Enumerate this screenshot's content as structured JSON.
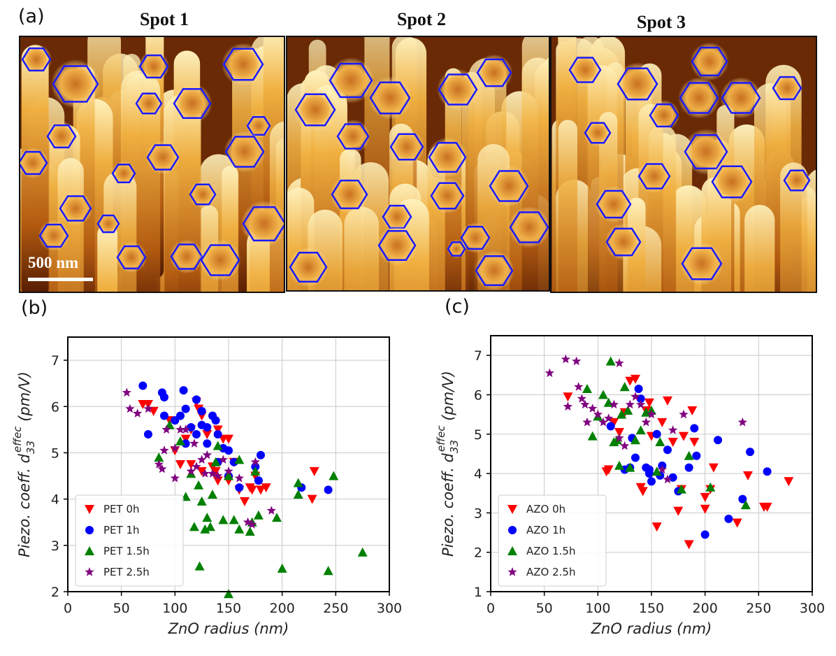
{
  "figure": {
    "panel_label": "(a)",
    "spots": [
      "Spot 1",
      "Spot 2",
      "Spot 3"
    ],
    "scale_bar": "500 nm"
  },
  "chart_data": [
    {
      "type": "scatter",
      "panel_label": "(b)",
      "xlabel": "ZnO radius (nm)",
      "ylabel": {
        "prefix": "Piezo. coeff. d",
        "sub": "33",
        "sup": "effec",
        "suffix": " (pm/V)"
      },
      "xlim": [
        0,
        300
      ],
      "ylim": [
        2,
        7.5
      ],
      "xticks": [
        0,
        50,
        100,
        150,
        200,
        250,
        300
      ],
      "yticks": [
        2,
        3,
        4,
        5,
        6,
        7
      ],
      "grid": true,
      "legend": "lower left",
      "series": [
        {
          "name": "PET 0h",
          "color": "#ff0000",
          "marker": "v",
          "x": [
            70,
            75,
            80,
            100,
            105,
            110,
            115,
            120,
            122,
            125,
            130,
            135,
            138,
            140,
            145,
            150,
            155,
            160,
            165,
            170,
            172,
            175,
            180,
            185,
            230,
            228,
            115,
            125,
            140,
            150,
            95
          ],
          "values": [
            6.05,
            6.05,
            5.9,
            5.05,
            4.75,
            5.3,
            5.5,
            6.1,
            5.95,
            5.8,
            5.4,
            4.7,
            4.6,
            5.5,
            5.3,
            5.3,
            4.8,
            4.2,
            3.95,
            4.25,
            4.2,
            4.5,
            4.2,
            4.25,
            4.6,
            4.0,
            4.75,
            4.6,
            4.4,
            4.4,
            5.7
          ]
        },
        {
          "name": "PET 1h",
          "color": "#0000ff",
          "marker": "o",
          "x": [
            70,
            75,
            88,
            90,
            90,
            100,
            105,
            108,
            110,
            115,
            120,
            120,
            125,
            125,
            130,
            130,
            135,
            138,
            140,
            145,
            150,
            150,
            155,
            160,
            175,
            178,
            180,
            218,
            243,
            110,
            140
          ],
          "values": [
            6.45,
            5.4,
            6.3,
            6.2,
            5.8,
            5.7,
            5.8,
            6.35,
            5.95,
            5.55,
            6.15,
            5.4,
            5.6,
            5.9,
            5.55,
            5.2,
            5.8,
            5.7,
            5.4,
            5.1,
            5.05,
            4.5,
            4.8,
            4.25,
            4.7,
            4.4,
            4.95,
            4.25,
            4.2,
            5.2,
            4.8
          ]
        },
        {
          "name": "PET 1.5h",
          "color": "#008000",
          "marker": "^",
          "x": [
            85,
            95,
            105,
            110,
            115,
            118,
            122,
            123,
            125,
            128,
            130,
            133,
            135,
            138,
            140,
            145,
            150,
            155,
            160,
            160,
            170,
            172,
            175,
            178,
            195,
            200,
            215,
            215,
            243,
            248,
            275,
            150
          ],
          "values": [
            4.9,
            5.6,
            5.25,
            4.05,
            4.55,
            3.4,
            4.3,
            2.55,
            3.95,
            3.35,
            3.6,
            3.4,
            4.1,
            4.8,
            5.15,
            3.55,
            4.5,
            3.55,
            4.85,
            3.35,
            3.3,
            3.5,
            4.6,
            3.65,
            3.6,
            2.5,
            4.35,
            4.1,
            2.45,
            4.5,
            2.85,
            1.95
          ]
        },
        {
          "name": "PET 2.5h",
          "color": "#800080",
          "marker": "*",
          "x": [
            55,
            58,
            65,
            75,
            85,
            88,
            90,
            92,
            100,
            105,
            110,
            115,
            120,
            125,
            128,
            130,
            135,
            140,
            145,
            150,
            160,
            168,
            172,
            175,
            190,
            100,
            118
          ],
          "values": [
            6.3,
            5.95,
            5.85,
            5.95,
            4.75,
            4.65,
            5.05,
            5.5,
            5.1,
            5.5,
            5.5,
            4.6,
            4.7,
            4.85,
            4.55,
            4.95,
            4.55,
            4.5,
            4.85,
            4.6,
            4.45,
            3.5,
            3.45,
            4.8,
            3.75,
            4.45,
            5.2
          ]
        }
      ]
    },
    {
      "type": "scatter",
      "panel_label": "(c)",
      "xlabel": "ZnO radius (nm)",
      "ylabel": {
        "prefix": "Piezo. coeff. d",
        "sub": "33",
        "sup": "effec",
        "suffix": " (pm/V)"
      },
      "xlim": [
        0,
        300
      ],
      "ylim": [
        1,
        7.5
      ],
      "xticks": [
        0,
        50,
        100,
        150,
        200,
        250,
        300
      ],
      "yticks": [
        1,
        2,
        3,
        4,
        5,
        6,
        7
      ],
      "grid": true,
      "legend": "lower left",
      "series": [
        {
          "name": "AZO 0h",
          "color": "#ff0000",
          "marker": "v",
          "x": [
            72,
            108,
            110,
            115,
            120,
            125,
            130,
            135,
            140,
            142,
            145,
            148,
            150,
            155,
            160,
            165,
            170,
            175,
            178,
            185,
            188,
            190,
            200,
            205,
            208,
            230,
            240,
            255,
            258,
            278,
            180,
            200
          ],
          "values": [
            5.95,
            4.05,
            4.1,
            5.3,
            5.05,
            5.55,
            6.35,
            6.4,
            3.65,
            3.55,
            5.6,
            5.8,
            4.95,
            2.65,
            5.3,
            5.85,
            4.8,
            3.05,
            3.6,
            2.2,
            5.6,
            4.8,
            3.1,
            3.6,
            4.15,
            2.75,
            3.95,
            3.15,
            3.15,
            3.8,
            4.95,
            3.4
          ]
        },
        {
          "name": "AZO 1h",
          "color": "#0000ff",
          "marker": "o",
          "x": [
            112,
            125,
            130,
            132,
            135,
            138,
            140,
            145,
            148,
            150,
            155,
            158,
            160,
            165,
            170,
            175,
            185,
            190,
            192,
            200,
            212,
            222,
            235,
            242,
            258,
            148
          ],
          "values": [
            5.2,
            4.1,
            4.15,
            4.9,
            4.4,
            6.15,
            5.9,
            4.15,
            4.0,
            3.8,
            5.0,
            3.95,
            4.2,
            4.6,
            3.9,
            3.55,
            4.15,
            5.15,
            4.45,
            2.45,
            4.85,
            2.85,
            3.35,
            4.55,
            4.05,
            4.1
          ]
        },
        {
          "name": "AZO 1.5h",
          "color": "#008000",
          "marker": "^",
          "x": [
            90,
            95,
            100,
            105,
            110,
            112,
            115,
            118,
            120,
            122,
            125,
            128,
            130,
            135,
            140,
            145,
            150,
            155,
            158,
            178,
            185,
            205,
            238
          ],
          "values": [
            6.15,
            4.95,
            5.45,
            6.0,
            5.8,
            6.85,
            4.8,
            4.85,
            4.2,
            5.5,
            6.2,
            5.6,
            4.15,
            4.85,
            5.1,
            5.55,
            5.6,
            4.05,
            4.8,
            3.6,
            4.45,
            3.65,
            3.2
          ]
        },
        {
          "name": "AZO 2.5h",
          "color": "#800080",
          "marker": "*",
          "x": [
            55,
            70,
            72,
            80,
            82,
            85,
            88,
            90,
            95,
            100,
            105,
            110,
            115,
            120,
            120,
            125,
            130,
            135,
            140,
            145,
            150,
            160,
            165,
            170,
            180,
            235
          ],
          "values": [
            6.55,
            6.9,
            5.7,
            6.85,
            6.2,
            5.9,
            5.75,
            5.3,
            5.65,
            5.5,
            5.3,
            5.4,
            5.75,
            6.8,
            4.9,
            4.7,
            5.75,
            5.95,
            5.75,
            5.3,
            5.5,
            4.1,
            3.85,
            5.1,
            5.5,
            5.3
          ]
        }
      ]
    }
  ]
}
